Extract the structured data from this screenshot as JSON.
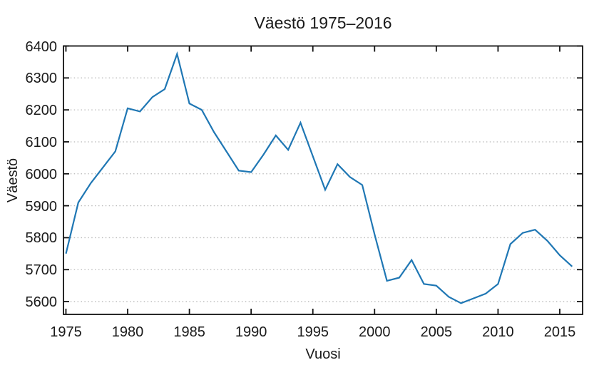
{
  "chart_data": {
    "type": "line",
    "title": "Väestö 1975–2016",
    "xlabel": "Vuosi",
    "ylabel": "Väestö",
    "x": [
      1975,
      1976,
      1977,
      1978,
      1979,
      1980,
      1981,
      1982,
      1983,
      1984,
      1985,
      1986,
      1987,
      1988,
      1989,
      1990,
      1991,
      1992,
      1993,
      1994,
      1995,
      1996,
      1997,
      1998,
      1999,
      2000,
      2001,
      2002,
      2003,
      2004,
      2005,
      2006,
      2007,
      2008,
      2009,
      2010,
      2011,
      2012,
      2013,
      2014,
      2015,
      2016
    ],
    "series": [
      {
        "name": "Väestö",
        "color": "#1f77b4",
        "values": [
          5750,
          5910,
          5970,
          6020,
          6070,
          6205,
          6195,
          6240,
          6265,
          6375,
          6220,
          6200,
          6130,
          6070,
          6010,
          6005,
          6060,
          6120,
          6075,
          6160,
          6055,
          5950,
          6030,
          5990,
          5965,
          5810,
          5665,
          5675,
          5730,
          5655,
          5650,
          5615,
          5595,
          5610,
          5625,
          5655,
          5780,
          5815,
          5825,
          5790,
          5745,
          5710
        ]
      }
    ],
    "xticks": [
      1975,
      1980,
      1985,
      1990,
      1995,
      2000,
      2005,
      2010,
      2015
    ],
    "yticks": [
      5600,
      5700,
      5800,
      5900,
      6000,
      6100,
      6200,
      6300,
      6400
    ],
    "xlim": [
      1974.8,
      2016.85
    ],
    "ylim": [
      5560,
      6400
    ],
    "grid": "horizontal-dotted",
    "gridline_color": "#b9b9b9",
    "frame_color": "#111111",
    "legend": "none"
  }
}
